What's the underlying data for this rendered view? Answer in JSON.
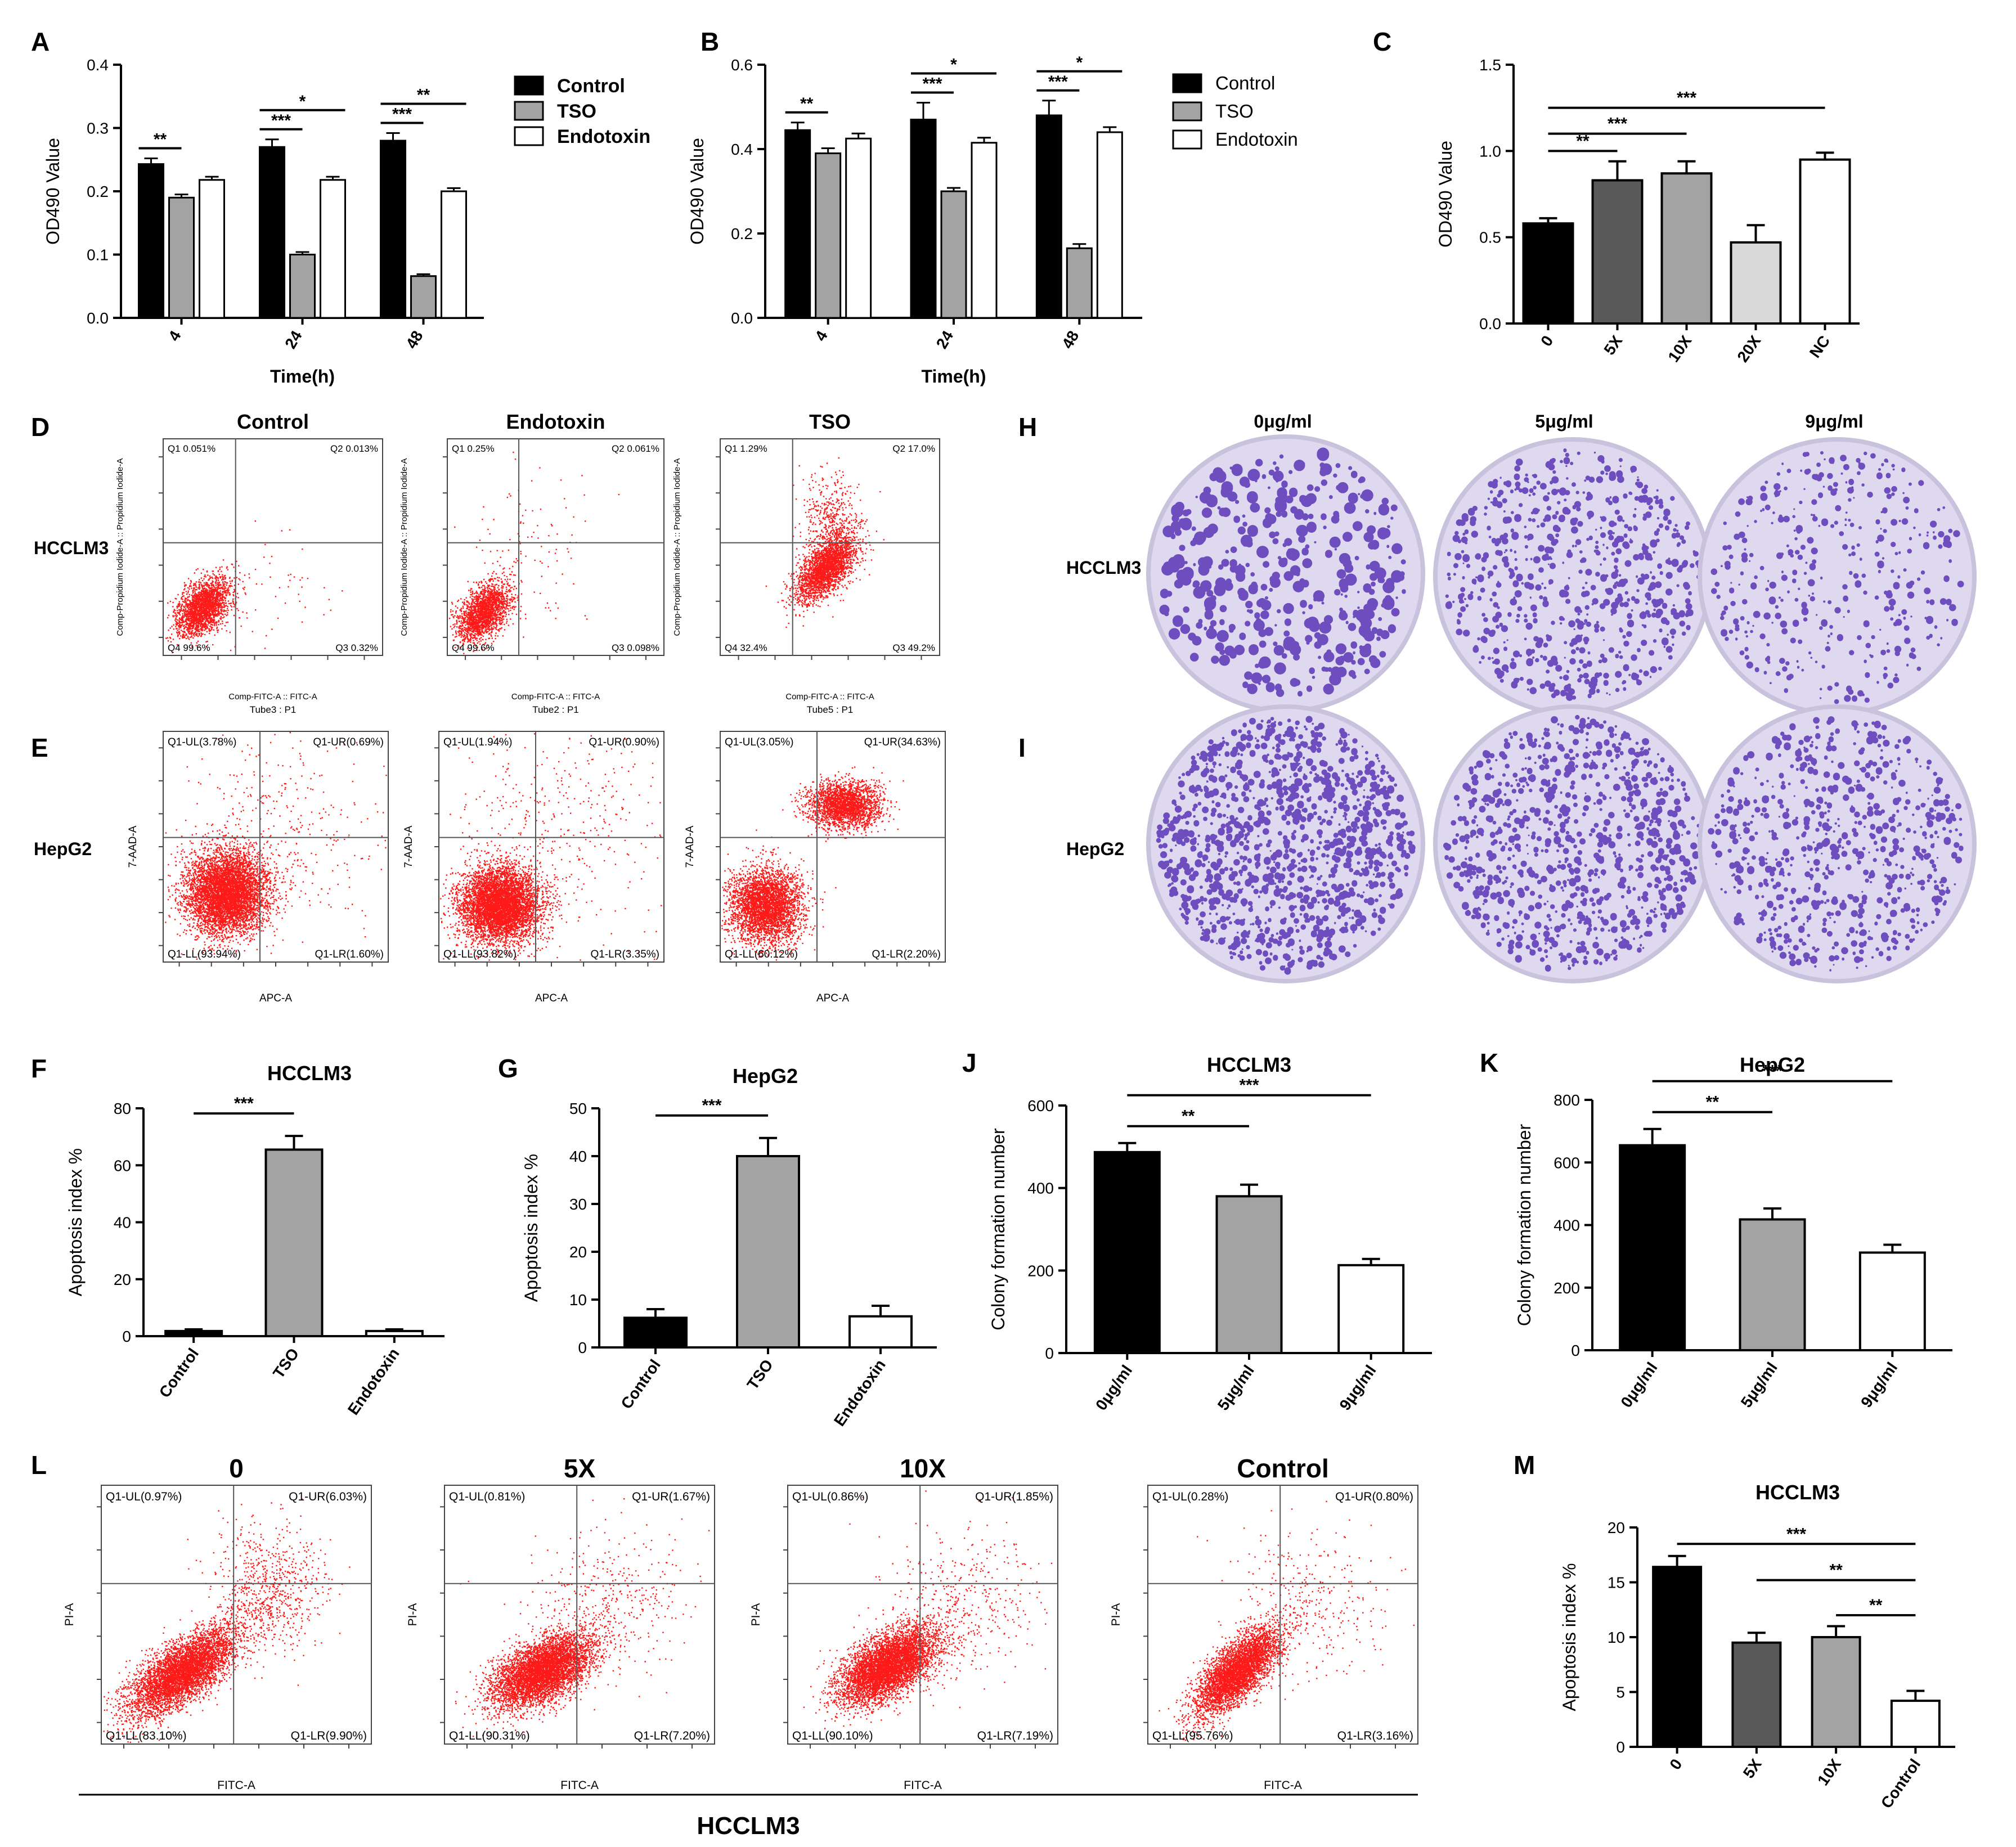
{
  "panel_labels": {
    "A": "A",
    "B": "B",
    "C": "C",
    "D": "D",
    "E": "E",
    "F": "F",
    "G": "G",
    "H": "H",
    "I": "I",
    "J": "J",
    "K": "K",
    "L": "L",
    "M": "M"
  },
  "sig": {
    "s1": "*",
    "s2": "**",
    "s3": "***"
  },
  "chart_data": [
    {
      "id": "A",
      "type": "bar",
      "categories": [
        "4",
        "24",
        "48"
      ],
      "series": [
        {
          "name": "Control",
          "values": [
            0.243,
            0.27,
            0.28
          ],
          "errors": [
            0.009,
            0.012,
            0.012
          ]
        },
        {
          "name": "TSO",
          "values": [
            0.19,
            0.1,
            0.066
          ],
          "errors": [
            0.005,
            0.004,
            0.003
          ]
        },
        {
          "name": "Endotoxin",
          "values": [
            0.218,
            0.218,
            0.2
          ],
          "errors": [
            0.005,
            0.005,
            0.005
          ]
        }
      ],
      "xlabel": "Time(h)",
      "ylabel": "OD490 Value",
      "ylim": [
        0,
        0.4
      ],
      "yticks": [
        "0.0",
        "0.1",
        "0.2",
        "0.3",
        "0.4"
      ],
      "significance": [
        {
          "group": "4",
          "pair": "Control-TSO",
          "label": "**"
        },
        {
          "group": "24",
          "pair": "Control-TSO",
          "label": "***"
        },
        {
          "group": "24",
          "pair": "Control-Endotoxin",
          "label": "*"
        },
        {
          "group": "48",
          "pair": "Control-TSO",
          "label": "***"
        },
        {
          "group": "48",
          "pair": "Control-Endotoxin",
          "label": "**"
        }
      ]
    },
    {
      "id": "B",
      "type": "bar",
      "categories": [
        "4",
        "24",
        "48"
      ],
      "series": [
        {
          "name": "Control",
          "values": [
            0.445,
            0.47,
            0.48
          ],
          "errors": [
            0.018,
            0.04,
            0.035
          ]
        },
        {
          "name": "TSO",
          "values": [
            0.39,
            0.3,
            0.165
          ],
          "errors": [
            0.012,
            0.008,
            0.01
          ]
        },
        {
          "name": "Endotoxin",
          "values": [
            0.425,
            0.415,
            0.44
          ],
          "errors": [
            0.012,
            0.012,
            0.012
          ]
        }
      ],
      "xlabel": "Time(h)",
      "ylabel": "OD490 Value",
      "ylim": [
        0,
        0.6
      ],
      "yticks": [
        "0.0",
        "0.2",
        "0.4",
        "0.6"
      ],
      "significance": [
        {
          "group": "4",
          "pair": "Control-TSO",
          "label": "**"
        },
        {
          "group": "24",
          "pair": "Control-TSO",
          "label": "***"
        },
        {
          "group": "24",
          "pair": "Control-Endotoxin",
          "label": "*"
        },
        {
          "group": "48",
          "pair": "Control-TSO",
          "label": "***"
        },
        {
          "group": "48",
          "pair": "Control-Endotoxin",
          "label": "*"
        }
      ]
    },
    {
      "id": "C",
      "type": "bar",
      "categories": [
        "0",
        "5X",
        "10X",
        "20X",
        "NC"
      ],
      "values": [
        0.58,
        0.83,
        0.87,
        0.47,
        0.95
      ],
      "errors": [
        0.03,
        0.11,
        0.07,
        0.1,
        0.04
      ],
      "colors": [
        "#000000",
        "#595959",
        "#a3a3a3",
        "#d9d9d9",
        "#ffffff"
      ],
      "ylabel": "OD490 Value",
      "ylim": [
        0,
        1.5
      ],
      "yticks": [
        "0.0",
        "0.5",
        "1.0",
        "1.5"
      ],
      "significance": [
        {
          "from": "0",
          "to": "5X",
          "label": "**"
        },
        {
          "from": "0",
          "to": "10X",
          "label": "***"
        },
        {
          "from": "0",
          "to": "NC",
          "label": "***"
        }
      ]
    },
    {
      "id": "F",
      "type": "bar",
      "title": "HCCLM3",
      "categories": [
        "Control",
        "TSO",
        "Endotoxin"
      ],
      "values": [
        1.8,
        65.5,
        1.8
      ],
      "errors": [
        0.6,
        4.8,
        0.6
      ],
      "colors": [
        "#000000",
        "#a3a3a3",
        "#ffffff"
      ],
      "ylabel": "Apoptosis index %",
      "ylim": [
        0,
        80
      ],
      "yticks": [
        "0",
        "20",
        "40",
        "60",
        "80"
      ],
      "significance": [
        {
          "from": "Control",
          "to": "TSO",
          "label": "***"
        }
      ]
    },
    {
      "id": "G",
      "type": "bar",
      "title": "HepG2",
      "categories": [
        "Control",
        "TSO",
        "Endotoxin"
      ],
      "values": [
        6.2,
        40,
        6.5
      ],
      "errors": [
        1.8,
        3.8,
        2.2
      ],
      "colors": [
        "#000000",
        "#a3a3a3",
        "#ffffff"
      ],
      "ylabel": "Apoptosis index %",
      "ylim": [
        0,
        50
      ],
      "yticks": [
        "0",
        "10",
        "20",
        "30",
        "40",
        "50"
      ],
      "significance": [
        {
          "from": "Control",
          "to": "TSO",
          "label": "***"
        }
      ]
    },
    {
      "id": "J",
      "type": "bar",
      "title": "HCCLM3",
      "categories": [
        "0μg/ml",
        "5μg/ml",
        "9μg/ml"
      ],
      "values": [
        487,
        380,
        213
      ],
      "errors": [
        22,
        28,
        15
      ],
      "colors": [
        "#000000",
        "#a3a3a3",
        "#ffffff"
      ],
      "ylabel": "Colony formation number",
      "ylim": [
        0,
        600
      ],
      "yticks": [
        "0",
        "200",
        "400",
        "600"
      ],
      "significance": [
        {
          "from": "0μg/ml",
          "to": "5μg/ml",
          "label": "**"
        },
        {
          "from": "0μg/ml",
          "to": "9μg/ml",
          "label": "***"
        }
      ]
    },
    {
      "id": "K",
      "type": "bar",
      "title": "HepG2",
      "categories": [
        "0μg/ml",
        "5μg/ml",
        "9μg/ml"
      ],
      "values": [
        655,
        418,
        312
      ],
      "errors": [
        52,
        35,
        25
      ],
      "colors": [
        "#000000",
        "#a3a3a3",
        "#ffffff"
      ],
      "ylabel": "Colony formation number",
      "ylim": [
        0,
        800
      ],
      "yticks": [
        "0",
        "200",
        "400",
        "600",
        "800"
      ],
      "significance": [
        {
          "from": "0μg/ml",
          "to": "5μg/ml",
          "label": "**"
        },
        {
          "from": "0μg/ml",
          "to": "9μg/ml",
          "label": "***"
        }
      ]
    },
    {
      "id": "M",
      "type": "bar",
      "title": "HCCLM3",
      "categories": [
        "0",
        "5X",
        "10X",
        "Control"
      ],
      "values": [
        16.4,
        9.5,
        10,
        4.2
      ],
      "errors": [
        1.0,
        0.9,
        1.0,
        0.9
      ],
      "colors": [
        "#000000",
        "#595959",
        "#a3a3a3",
        "#ffffff"
      ],
      "ylabel": "Apoptosis index %",
      "ylim": [
        0,
        20
      ],
      "yticks": [
        "0",
        "5",
        "10",
        "15",
        "20"
      ],
      "significance": [
        {
          "from": "0",
          "to": "Control",
          "label": "***"
        },
        {
          "from": "5X",
          "to": "Control",
          "label": "**"
        },
        {
          "from": "10X",
          "to": "Control",
          "label": "**"
        }
      ]
    }
  ],
  "legendA": [
    "Control",
    "TSO",
    "Endotoxin"
  ],
  "legendB": [
    "Control",
    "TSO",
    "Endotoxin"
  ],
  "flowD": {
    "row_label": "HCCLM3",
    "titles": [
      "Control",
      "Endotoxin",
      "TSO"
    ],
    "tubes": [
      "Tube3 : P1",
      "Tube2 : P1",
      "Tube5 : P1"
    ],
    "xlabel": "Comp-FITC-A :: FITC-A",
    "ylabel": "Comp-Propidium Iodide-A :: Propidium Iodide-A",
    "q_names": [
      "Q1",
      "Q2",
      "Q3",
      "Q4"
    ],
    "plots": [
      {
        "q1": "0.051%",
        "q2": "0.013%",
        "q3": "0.32%",
        "q4": "99.6%"
      },
      {
        "q1": "0.25%",
        "q2": "0.061%",
        "q3": "0.098%",
        "q4": "99.6%"
      },
      {
        "q1": "1.29%",
        "q2": "17.0%",
        "q3": "49.2%",
        "q4": "32.4%"
      }
    ]
  },
  "flowE": {
    "row_label": "HepG2",
    "xlabel": "APC-A",
    "ylabel": "7-AAD-A",
    "plots": [
      {
        "ul": "Q1-UL(3.78%)",
        "ur": "Q1-UR(0.69%)",
        "ll": "Q1-LL(93.94%)",
        "lr": "Q1-LR(1.60%)"
      },
      {
        "ul": "Q1-UL(1.94%)",
        "ur": "Q1-UR(0.90%)",
        "ll": "Q1-LL(93.82%)",
        "lr": "Q1-LR(3.35%)"
      },
      {
        "ul": "Q1-UL(3.05%)",
        "ur": "Q1-UR(34.63%)",
        "ll": "Q1-LL(60.12%)",
        "lr": "Q1-LR(2.20%)"
      }
    ]
  },
  "flowL": {
    "titles": [
      "0",
      "5X",
      "10X",
      "Control"
    ],
    "footer": "HCCLM3",
    "xlabel": "FITC-A",
    "ylabel": "PI-A",
    "plots": [
      {
        "ul": "Q1-UL(0.97%)",
        "ur": "Q1-UR(6.03%)",
        "ll": "Q1-LL(83.10%)",
        "lr": "Q1-LR(9.90%)"
      },
      {
        "ul": "Q1-UL(0.81%)",
        "ur": "Q1-UR(1.67%)",
        "ll": "Q1-LL(90.31%)",
        "lr": "Q1-LR(7.20%)"
      },
      {
        "ul": "Q1-UL(0.86%)",
        "ur": "Q1-UR(1.85%)",
        "ll": "Q1-LL(90.10%)",
        "lr": "Q1-LR(7.19%)"
      },
      {
        "ul": "Q1-UL(0.28%)",
        "ur": "Q1-UR(0.80%)",
        "ll": "Q1-LL(95.76%)",
        "lr": "Q1-LR(3.16%)"
      }
    ]
  },
  "colony": {
    "concentrations": [
      "0μg/ml",
      "5μg/ml",
      "9μg/ml"
    ],
    "rows": [
      "HCCLM3",
      "HepG2"
    ]
  },
  "colors": {
    "scatter": "#ff1a1a",
    "plate": "#ded9ee",
    "stain": "#5a35b5",
    "gray": "#a3a3a3"
  }
}
